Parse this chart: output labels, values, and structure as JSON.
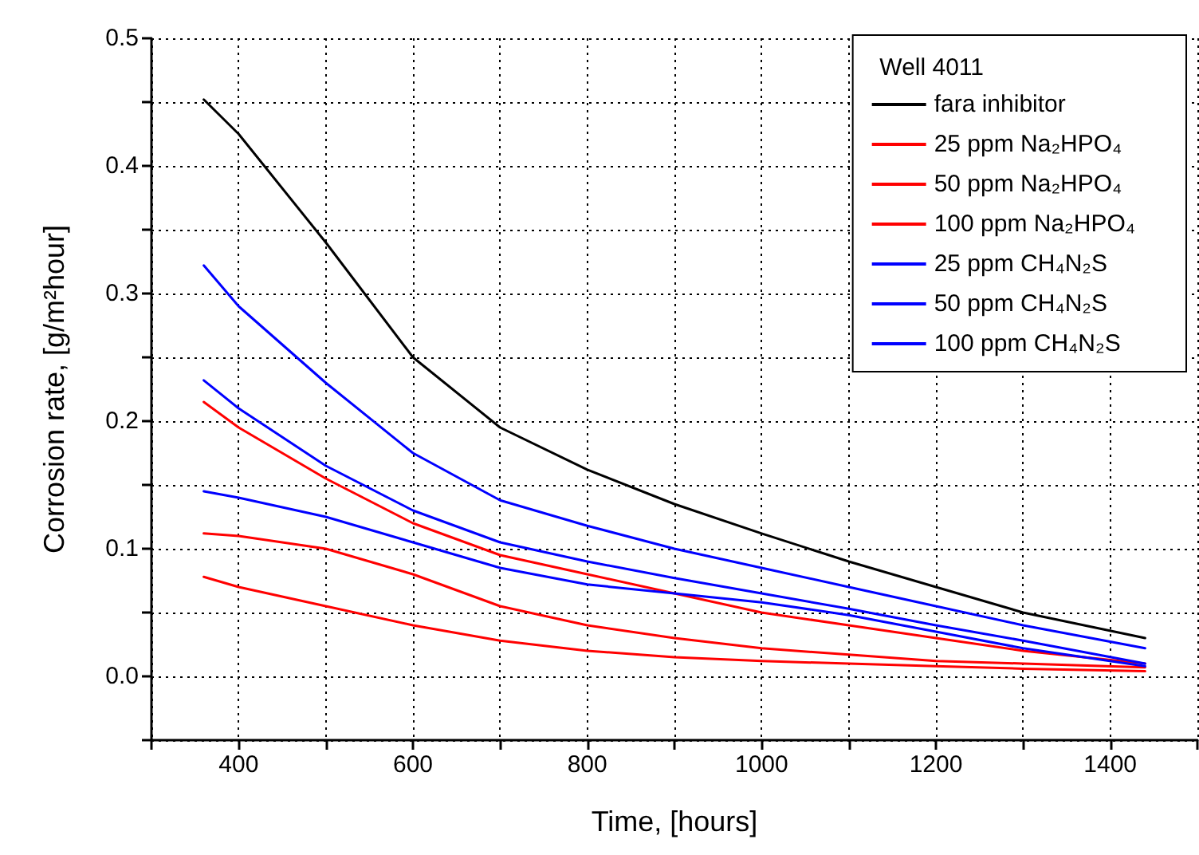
{
  "chart_data": {
    "type": "line",
    "xlabel": "Time, [hours]",
    "ylabel": "Corrosion rate, [g/m²hour]",
    "legend_title": "Well 4011",
    "x": [
      360,
      400,
      500,
      600,
      700,
      800,
      900,
      1000,
      1100,
      1200,
      1300,
      1440
    ],
    "series": [
      {
        "name": "fara inhibitor",
        "color": "#000000",
        "values": [
          0.452,
          0.425,
          0.34,
          0.25,
          0.195,
          0.162,
          0.135,
          0.112,
          0.09,
          0.07,
          0.05,
          0.03
        ]
      },
      {
        "name": "25 ppm Na₂HPO₄",
        "color": "#ff0000",
        "values": [
          0.215,
          0.195,
          0.155,
          0.12,
          0.095,
          0.08,
          0.065,
          0.05,
          0.04,
          0.03,
          0.02,
          0.01
        ]
      },
      {
        "name": "50 ppm Na₂HPO₄",
        "color": "#ff0000",
        "values": [
          0.112,
          0.11,
          0.1,
          0.08,
          0.055,
          0.04,
          0.03,
          0.022,
          0.017,
          0.012,
          0.01,
          0.007
        ]
      },
      {
        "name": "100 ppm Na₂HPO₄",
        "color": "#ff0000",
        "values": [
          0.078,
          0.07,
          0.055,
          0.04,
          0.028,
          0.02,
          0.015,
          0.012,
          0.01,
          0.008,
          0.006,
          0.004
        ]
      },
      {
        "name": "25 ppm CH₄N₂S",
        "color": "#0000ff",
        "values": [
          0.322,
          0.29,
          0.23,
          0.175,
          0.138,
          0.118,
          0.1,
          0.085,
          0.07,
          0.055,
          0.04,
          0.022
        ]
      },
      {
        "name": "50 ppm CH₄N₂S",
        "color": "#0000ff",
        "values": [
          0.232,
          0.21,
          0.165,
          0.13,
          0.105,
          0.09,
          0.077,
          0.065,
          0.053,
          0.04,
          0.028,
          0.01
        ]
      },
      {
        "name": "100 ppm CH₄N₂S",
        "color": "#0000ff",
        "values": [
          0.145,
          0.14,
          0.125,
          0.105,
          0.085,
          0.072,
          0.065,
          0.058,
          0.048,
          0.035,
          0.022,
          0.008
        ]
      }
    ],
    "xlim": [
      300,
      1500
    ],
    "xticks": [
      {
        "value": 300,
        "label": null
      },
      400,
      {
        "value": 500,
        "label": null
      },
      600,
      {
        "value": 700,
        "label": null
      },
      800,
      {
        "value": 900,
        "label": null
      },
      1000,
      {
        "value": 1100,
        "label": null
      },
      1200,
      {
        "value": 1300,
        "label": null
      },
      1400,
      {
        "value": 1500,
        "label": null
      }
    ],
    "ylim": [
      -0.05,
      0.5
    ],
    "yticks": [
      {
        "value": -0.05,
        "label": null
      },
      {
        "value": 0,
        "label": "0.0"
      },
      {
        "value": 0.05,
        "label": null
      },
      {
        "value": 0.1,
        "label": "0.1"
      },
      {
        "value": 0.15,
        "label": null
      },
      {
        "value": 0.2,
        "label": "0.2"
      },
      {
        "value": 0.25,
        "label": null
      },
      {
        "value": 0.3,
        "label": "0.3"
      },
      {
        "value": 0.35,
        "label": null
      },
      {
        "value": 0.4,
        "label": "0.4"
      },
      {
        "value": 0.45,
        "label": null
      },
      {
        "value": 0.5,
        "label": "0.5"
      }
    ],
    "grid": true,
    "legend": "top right",
    "marker": "none",
    "line_style": "solid"
  }
}
